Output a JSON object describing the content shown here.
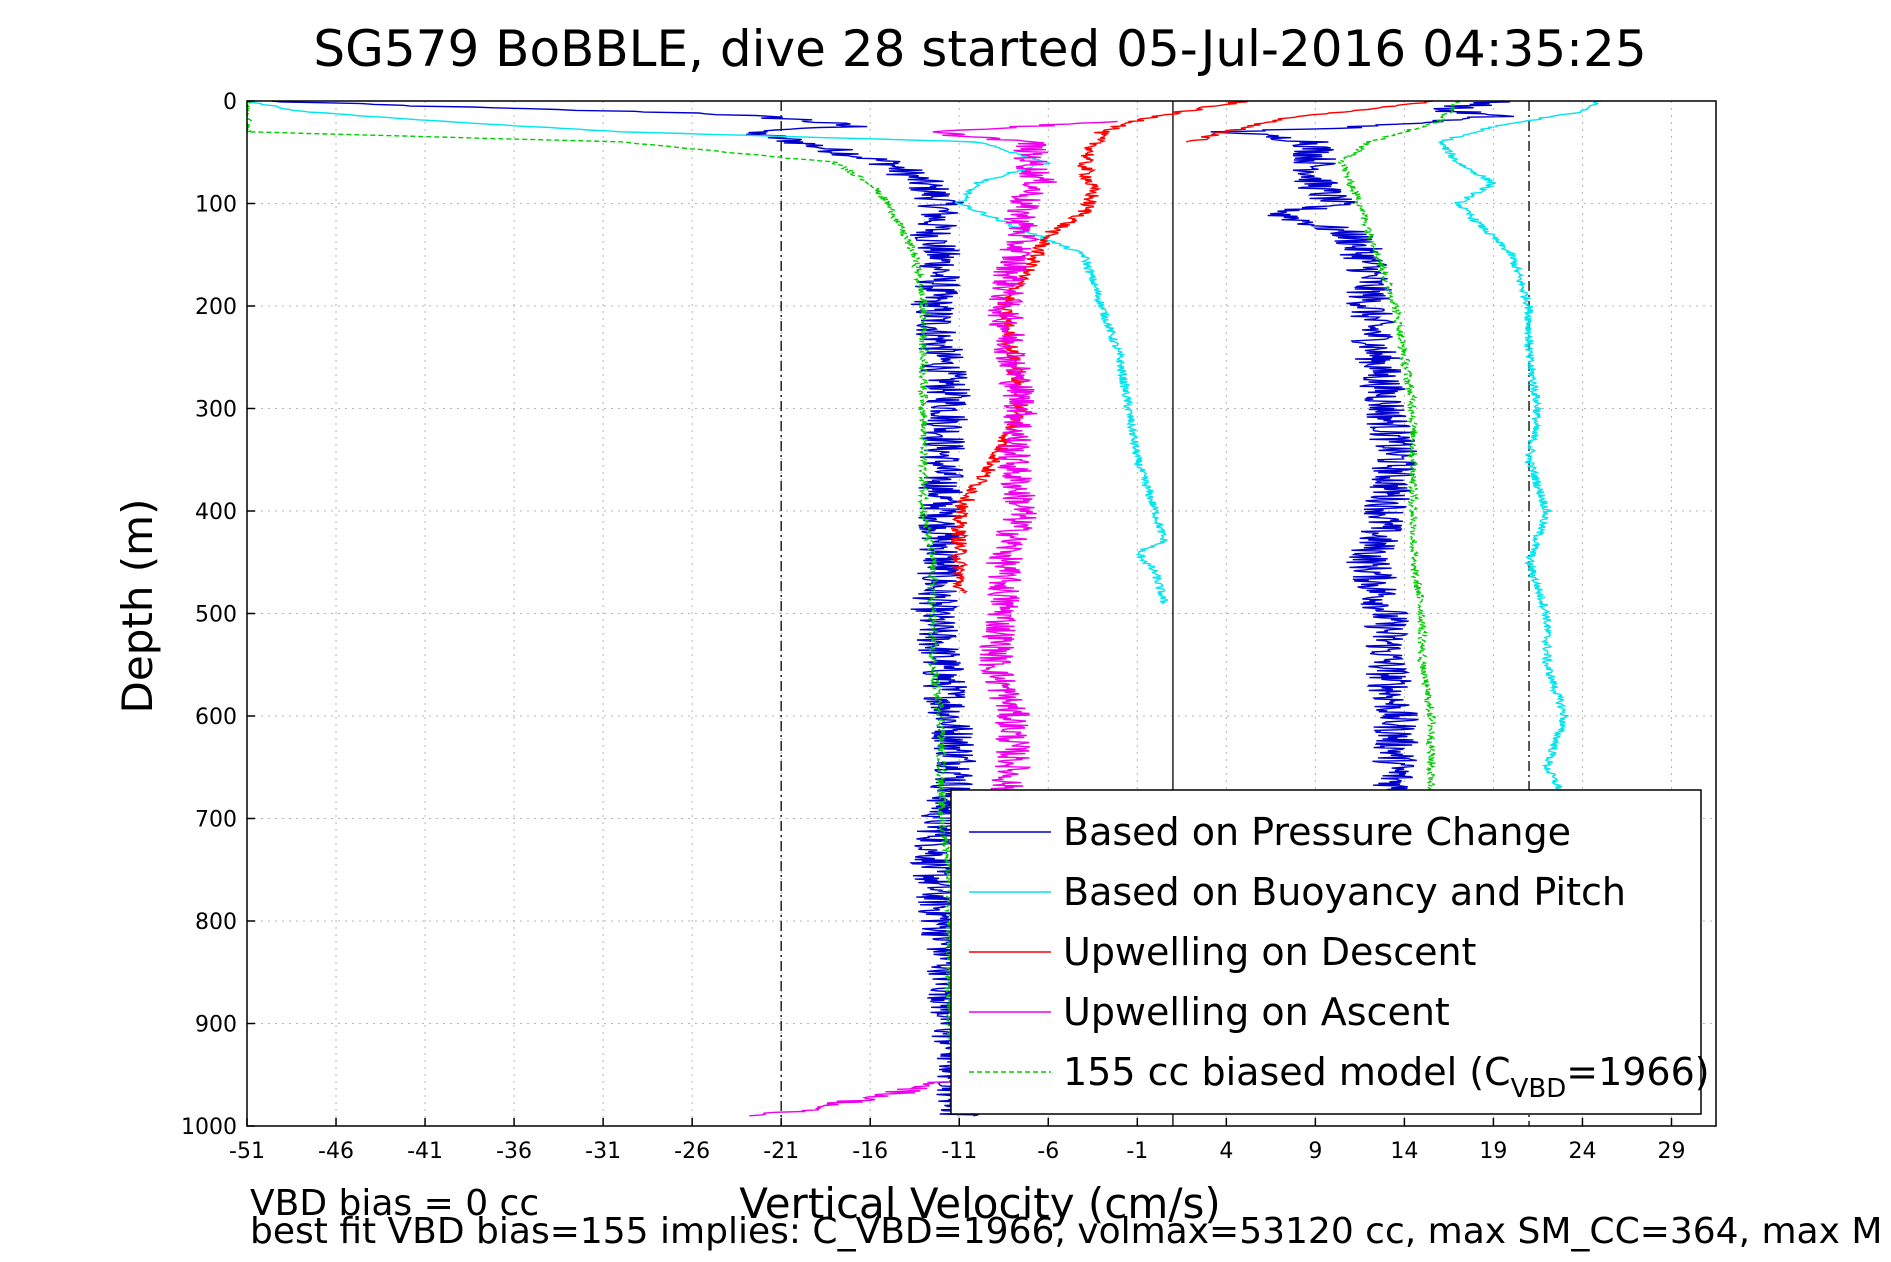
{
  "chart_data": {
    "type": "line",
    "title": "SG579 BoBBLE, dive 28 started 05-Jul-2016 04:35:25",
    "xlabel": "Vertical Velocity (cm/s)",
    "ylabel": "Depth (m)",
    "xlim": [
      -51,
      31.5
    ],
    "ylim": [
      0,
      1000
    ],
    "y_reversed": true,
    "grid": true,
    "xticks": [
      -51,
      -46,
      -41,
      -36,
      -31,
      -26,
      -21,
      -16,
      -11,
      -6,
      -1,
      4,
      9,
      14,
      19,
      24,
      29
    ],
    "yticks": [
      0,
      100,
      200,
      300,
      400,
      500,
      600,
      700,
      800,
      900,
      1000
    ],
    "reference_lines": [
      {
        "x": -21,
        "style": "dash-dot"
      },
      {
        "x": 1,
        "style": "solid"
      },
      {
        "x": 21,
        "style": "dash-dot"
      }
    ],
    "legend_position": "bottom-right",
    "series": [
      {
        "name": "Based on Pressure Change",
        "color": "#0000cc",
        "noise": 1.3,
        "segments": [
          {
            "depth": [
              0,
              3,
              8,
              12,
              18,
              25,
              30,
              40,
              60,
              80,
              100,
              130,
              160,
              200,
              250,
              300,
              350,
              400,
              450,
              500,
              550,
              600,
              650,
              700,
              750,
              800,
              850,
              900,
              950,
              990
            ],
            "velocity": [
              -50,
              -45,
              -35,
              -25,
              -20,
              -17,
              -23,
              -20,
              -15,
              -13,
              -12,
              -12.5,
              -12,
              -12.5,
              -12,
              -11.5,
              -12,
              -12,
              -12,
              -12.5,
              -12,
              -11.5,
              -11,
              -12,
              -12.5,
              -12,
              -11.5,
              -11.5,
              -11,
              -11
            ]
          },
          {
            "depth": [
              0,
              8,
              15,
              25,
              30,
              40,
              60,
              80,
              100,
              110,
              130,
              160,
              200,
              250,
              300,
              350,
              400,
              450,
              500,
              550,
              600,
              650,
              680
            ],
            "velocity": [
              20,
              16,
              19,
              12,
              4,
              9,
              9,
              9,
              10,
              7,
              11,
              12,
              12,
              12.5,
              13,
              13.5,
              13,
              12,
              13,
              13,
              13.5,
              13.5,
              13.5
            ]
          }
        ]
      },
      {
        "name": "Based on Buoyancy and Pitch",
        "color": "#00e5ee",
        "noise": 0.25,
        "segments": [
          {
            "depth": [
              0,
              10,
              20,
              30,
              40,
              60,
              80,
              100,
              150,
              200,
              250,
              300,
              350,
              400,
              430,
              440,
              460,
              490
            ],
            "velocity": [
              -51,
              -48,
              -40,
              -30,
              -10,
              -6,
              -10,
              -11,
              -4,
              -3,
              -2,
              -1.5,
              -1,
              0,
              0.5,
              -1,
              0,
              0.5
            ]
          },
          {
            "depth": [
              0,
              10,
              25,
              40,
              60,
              80,
              100,
              150,
              200,
              250,
              300,
              350,
              400,
              450,
              500,
              550,
              600,
              650,
              680
            ],
            "velocity": [
              25,
              24,
              19,
              16,
              17,
              19,
              17,
              20,
              21,
              21,
              21.5,
              21,
              22,
              21,
              22,
              22,
              23,
              22,
              23
            ]
          }
        ]
      },
      {
        "name": "Upwelling on Descent",
        "color": "#ff0000",
        "noise": 0.45,
        "segments": [
          {
            "depth": [
              0,
              15,
              30,
              60,
              90,
              110,
              130,
              160,
              200,
              250,
              300,
              350,
              400,
              450,
              480
            ],
            "velocity": [
              5,
              0,
              -3,
              -4,
              -3.5,
              -4,
              -6,
              -7,
              -8.5,
              -8,
              -7.5,
              -9,
              -11,
              -11,
              -11
            ]
          },
          {
            "depth": [
              0,
              15,
              30,
              40
            ],
            "velocity": [
              16,
              8,
              4,
              2
            ]
          }
        ]
      },
      {
        "name": "Upwelling on Ascent",
        "color": "#ee00ee",
        "noise": 1.0,
        "segments": [
          {
            "depth": [
              20,
              30,
              40,
              60,
              80,
              100,
              130,
              160,
              200,
              250,
              300,
              350,
              400,
              450,
              500,
              550,
              600,
              650,
              700,
              750,
              800,
              850,
              900,
              950,
              970,
              985,
              990
            ],
            "velocity": [
              -2,
              -13,
              -7,
              -7,
              -6.5,
              -7.5,
              -7.5,
              -8,
              -8.5,
              -8,
              -7.5,
              -8,
              -7.5,
              -8.5,
              -8.5,
              -9,
              -8,
              -8,
              -9,
              -9,
              -9,
              -8.5,
              -9,
              -10,
              -15,
              -20,
              -23
            ]
          }
        ]
      },
      {
        "name": "155 cc biased model (C_VBD=1966)",
        "color": "#00cc00",
        "style": "dashed",
        "noise": 0.25,
        "segments": [
          {
            "depth": [
              0,
              10,
              20,
              30,
              40,
              60,
              80,
              100,
              150,
              200,
              250,
              300,
              350,
              400,
              450,
              500,
              550,
              600,
              650,
              700,
              750,
              800,
              850,
              900,
              950,
              990
            ],
            "velocity": [
              -51,
              -51,
              -51,
              -51,
              -30,
              -18,
              -16,
              -15,
              -13.5,
              -13,
              -13,
              -13,
              -13,
              -13,
              -12.5,
              -12.5,
              -12.5,
              -12,
              -12,
              -12,
              -11.5,
              -11.5,
              -11.5,
              -11.5,
              -11,
              -11
            ]
          },
          {
            "depth": [
              0,
              10,
              20,
              30,
              40,
              60,
              80,
              100,
              150,
              200,
              250,
              300,
              350,
              400,
              450,
              500,
              550,
              600,
              650,
              680
            ],
            "velocity": [
              17,
              16.5,
              16,
              14,
              12,
              10.5,
              11,
              11.5,
              12.5,
              13.5,
              14,
              14.5,
              14.5,
              14.5,
              14.5,
              15,
              15,
              15.5,
              15.5,
              15.5
            ]
          }
        ]
      }
    ],
    "legend_entries": [
      {
        "label": "Based on Pressure Change",
        "color": "#0000cc"
      },
      {
        "label": "Based on Buoyancy and Pitch",
        "color": "#00e5ee"
      },
      {
        "label": "Upwelling on Descent",
        "color": "#ff0000"
      },
      {
        "label": "Upwelling on Ascent",
        "color": "#ee00ee"
      },
      {
        "label": "155 cc biased model (C",
        "sub": "VBD",
        "suffix": "=1966)",
        "color": "#00cc00"
      }
    ]
  },
  "footer": {
    "line1": "VBD bias = 0 cc",
    "line2": "best fit VBD bias=155 implies: C_VBD=1966, volmax=53120 cc, max SM_CC=364, max M"
  }
}
